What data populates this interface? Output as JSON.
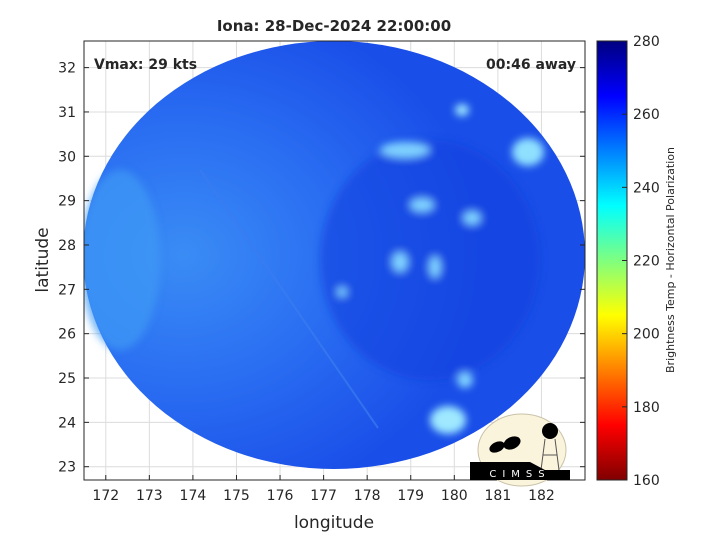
{
  "title": "Iona: 28-Dec-2024 22:00:00",
  "annotations": {
    "vmax": "Vmax: 29 kts",
    "away": "00:46 away"
  },
  "xlabel": "longitude",
  "ylabel": "latitude",
  "x_ticks": [
    "172",
    "173",
    "174",
    "175",
    "176",
    "177",
    "178",
    "179",
    "180",
    "181",
    "182"
  ],
  "y_ticks": [
    "23",
    "24",
    "25",
    "26",
    "27",
    "28",
    "29",
    "30",
    "31",
    "32"
  ],
  "x_range": [
    171.5,
    183.0
  ],
  "y_range": [
    22.7,
    32.6
  ],
  "colorbar": {
    "label": "Brightness Temp - Horizontal Polarization",
    "ticks": [
      "160",
      "180",
      "200",
      "220",
      "240",
      "260",
      "280"
    ],
    "range": [
      160,
      280
    ],
    "colormap": "jet"
  },
  "logo": {
    "text": "CIMSS"
  },
  "colors": {
    "background_blue": "#1a50f0",
    "bright_spots": "#8fe0ff"
  }
}
